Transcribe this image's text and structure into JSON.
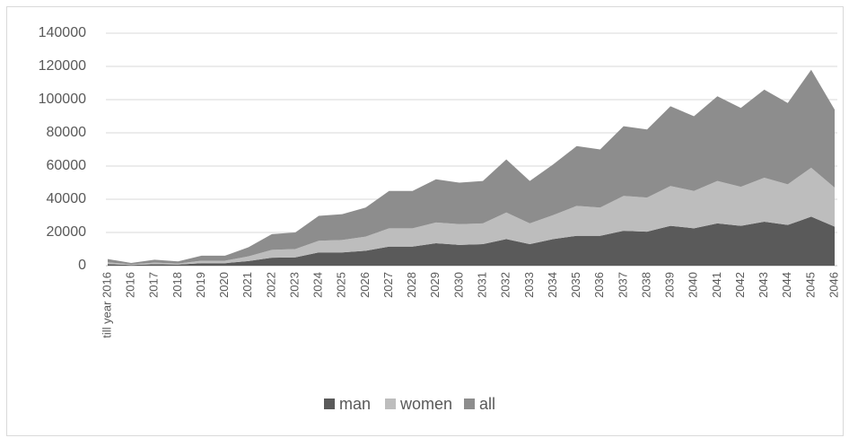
{
  "chart_data": {
    "type": "area",
    "stacked": true,
    "categories": [
      "till year 2016",
      "2016",
      "2017",
      "2018",
      "2019",
      "2020",
      "2021",
      "2022",
      "2023",
      "2024",
      "2025",
      "2026",
      "2027",
      "2028",
      "2029",
      "2030",
      "2031",
      "2032",
      "2033",
      "2034",
      "2035",
      "2036",
      "2037",
      "2038",
      "2039",
      "2040",
      "2041",
      "2042",
      "2043",
      "2044",
      "2045",
      "2046"
    ],
    "series": [
      {
        "name": "man",
        "color": "#5a5a5a",
        "values": [
          1000,
          400,
          900,
          700,
          1500,
          1500,
          2800,
          4800,
          5000,
          8000,
          8000,
          9000,
          11500,
          11500,
          13500,
          12500,
          13000,
          16000,
          13000,
          16000,
          18000,
          18000,
          21000,
          20500,
          24000,
          22500,
          25500,
          24000,
          26500,
          24500,
          29500,
          23500
        ]
      },
      {
        "name": "women",
        "color": "#bdbdbd",
        "values": [
          1000,
          400,
          900,
          600,
          1500,
          1500,
          2800,
          4700,
          5000,
          7000,
          7500,
          8500,
          11000,
          11000,
          12500,
          12500,
          12500,
          16000,
          12500,
          14500,
          18000,
          17000,
          21000,
          20500,
          24000,
          22500,
          25500,
          23500,
          26500,
          24500,
          29500,
          23500
        ]
      },
      {
        "name": "all",
        "color": "#8d8d8d",
        "values": [
          2000,
          800,
          1800,
          1300,
          3000,
          3000,
          5500,
          9500,
          10000,
          15000,
          15500,
          17500,
          22500,
          22500,
          26000,
          25000,
          25500,
          32000,
          25500,
          30500,
          36000,
          35000,
          42000,
          41000,
          48000,
          45000,
          51000,
          47500,
          53000,
          49000,
          59000,
          47000
        ]
      }
    ],
    "ylim": [
      0,
      140000
    ],
    "yticks": [
      0,
      20000,
      40000,
      60000,
      80000,
      100000,
      120000,
      140000
    ],
    "grid": true,
    "legend": "bottom"
  }
}
